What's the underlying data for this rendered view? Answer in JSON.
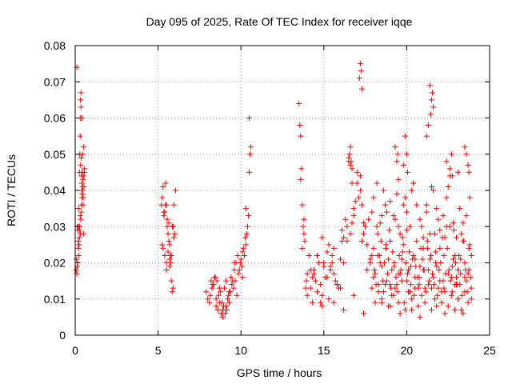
{
  "chart_data": {
    "type": "scatter",
    "title": "Day 095 of 2025, Rate Of TEC Index for receiver iqqe",
    "xlabel": "GPS time / hours",
    "ylabel": "ROTI / TECUs",
    "xlim": [
      0,
      25
    ],
    "ylim": [
      0,
      0.08
    ],
    "x_ticks": [
      "0",
      "5",
      "10",
      "15",
      "20",
      "25"
    ],
    "y_ticks": [
      "0",
      "0.01",
      "0.02",
      "0.03",
      "0.04",
      "0.05",
      "0.06",
      "0.07",
      "0.08"
    ],
    "grid": true,
    "marker": "+",
    "color": "#ff0000",
    "series": [
      {
        "x": [
          0.05,
          0.08,
          0.1,
          0.12,
          0.15,
          0.18,
          0.2,
          0.22,
          0.25,
          0.28,
          0.3,
          0.32,
          0.35,
          0.38,
          0.4,
          0.42,
          0.45,
          0.48,
          0.5,
          0.52,
          0.55,
          0.1,
          0.15,
          0.2,
          0.3,
          0.35,
          0.4,
          0.45,
          0.5,
          0.25,
          0.3,
          0.38,
          0.42,
          0.22,
          0.28,
          0.33,
          0.36,
          0.4,
          0.44,
          0.48,
          0.12,
          0.18,
          0.26,
          0.31,
          0.34,
          0.37,
          0.43,
          0.47,
          0.53,
          0.56,
          5.2,
          5.25,
          5.3,
          5.35,
          5.4,
          5.45,
          5.5,
          5.55,
          5.6,
          5.65,
          5.7,
          5.75,
          5.8,
          5.85,
          5.9,
          5.95,
          6.0,
          5.3,
          5.4,
          5.5,
          5.6,
          5.7,
          5.8,
          5.9,
          5.35,
          5.45,
          5.55,
          5.65,
          5.75,
          5.85,
          5.95,
          5.25,
          5.5,
          5.7,
          5.9,
          6.05,
          7.9,
          8.0,
          8.1,
          8.2,
          8.3,
          8.4,
          8.5,
          8.6,
          8.7,
          8.8,
          8.9,
          9.0,
          9.1,
          9.2,
          9.3,
          9.4,
          9.5,
          9.6,
          9.7,
          9.8,
          9.9,
          10.0,
          10.1,
          10.2,
          10.3,
          10.35,
          10.4,
          10.45,
          10.5,
          10.55,
          10.6,
          8.15,
          8.35,
          8.55,
          8.75,
          8.95,
          9.15,
          9.35,
          9.55,
          9.75,
          9.95,
          10.15,
          8.25,
          8.45,
          8.65,
          8.85,
          9.05,
          9.25,
          9.45,
          9.65,
          9.85,
          10.05,
          10.25,
          8.5,
          8.7,
          8.9,
          9.1,
          9.3,
          9.6,
          10.1,
          10.3,
          10.5,
          13.5,
          13.55,
          13.6,
          13.65,
          13.7,
          13.75,
          13.8,
          13.85,
          13.9,
          13.95,
          14.0,
          14.1,
          14.2,
          14.3,
          14.4,
          14.5,
          14.6,
          14.7,
          14.8,
          14.9,
          15.0,
          15.1,
          15.2,
          15.3,
          15.4,
          15.5,
          15.6,
          15.7,
          15.8,
          15.9,
          16.0,
          16.1,
          16.2,
          16.3,
          16.4,
          16.5,
          16.6,
          16.7,
          16.8,
          16.9,
          17.0,
          17.1,
          17.2,
          17.3,
          17.4,
          17.5,
          17.6,
          17.7,
          17.8,
          17.9,
          13.6,
          13.8,
          14.0,
          14.2,
          14.4,
          14.6,
          14.8,
          15.0,
          15.2,
          15.4,
          15.6,
          15.8,
          16.0,
          16.2,
          16.4,
          16.6,
          16.8,
          17.0,
          17.2,
          17.4,
          17.6,
          17.8,
          13.7,
          14.3,
          14.9,
          15.5,
          16.1,
          16.7,
          17.3,
          17.9,
          17.15,
          17.2,
          17.25,
          17.3,
          16.5,
          16.6,
          16.7,
          16.55,
          16.65,
          18.0,
          18.1,
          18.2,
          18.3,
          18.4,
          18.5,
          18.6,
          18.7,
          18.8,
          18.9,
          19.0,
          19.1,
          19.2,
          19.3,
          19.4,
          19.5,
          19.6,
          19.7,
          19.8,
          19.9,
          20.0,
          20.1,
          20.2,
          20.3,
          20.4,
          20.5,
          20.6,
          20.7,
          20.8,
          20.9,
          21.0,
          21.1,
          21.2,
          21.3,
          21.4,
          21.5,
          21.6,
          21.7,
          21.8,
          21.9,
          22.0,
          22.1,
          22.2,
          22.3,
          22.4,
          22.5,
          22.6,
          22.7,
          22.8,
          22.9,
          23.0,
          23.1,
          23.2,
          23.3,
          23.4,
          23.5,
          23.6,
          23.7,
          23.8,
          23.9,
          18.05,
          18.15,
          18.25,
          18.35,
          18.45,
          18.55,
          18.65,
          18.75,
          18.85,
          18.95,
          19.05,
          19.15,
          19.25,
          19.35,
          19.45,
          19.55,
          19.65,
          19.75,
          19.85,
          19.95,
          20.05,
          20.15,
          20.25,
          20.35,
          20.45,
          20.55,
          20.65,
          20.75,
          20.85,
          20.95,
          21.05,
          21.15,
          21.25,
          21.35,
          21.45,
          21.55,
          21.65,
          21.75,
          21.85,
          21.95,
          22.05,
          22.15,
          22.25,
          22.35,
          22.45,
          22.55,
          22.65,
          22.75,
          22.85,
          22.95,
          23.05,
          23.15,
          23.25,
          23.35,
          23.45,
          23.55,
          23.65,
          23.75,
          23.85,
          18.0,
          18.2,
          18.4,
          18.6,
          18.8,
          19.0,
          19.2,
          19.4,
          19.6,
          19.8,
          20.0,
          20.2,
          20.4,
          20.6,
          20.8,
          21.0,
          21.2,
          21.4,
          21.6,
          21.8,
          22.0,
          22.2,
          22.4,
          22.6,
          22.8,
          23.0,
          23.2,
          23.4,
          23.6,
          23.8,
          18.1,
          18.3,
          18.5,
          18.7,
          18.9,
          19.1,
          19.3,
          19.5,
          19.7,
          19.9,
          20.1,
          20.3,
          20.5,
          20.7,
          20.9,
          21.1,
          21.3,
          21.5,
          21.7,
          21.9,
          22.1,
          22.3,
          22.5,
          22.7,
          22.9,
          23.1,
          23.3,
          23.5,
          23.7,
          23.9,
          18.0,
          18.25,
          18.5,
          18.75,
          19.0,
          19.25,
          19.5,
          19.75,
          20.0,
          20.25,
          20.5,
          20.75,
          21.0,
          21.25,
          21.5,
          21.75,
          22.0,
          22.25,
          22.5,
          22.75,
          23.0,
          23.25,
          23.5,
          23.75,
          19.3,
          19.4,
          19.45,
          19.9,
          20.0,
          20.05,
          21.4,
          21.5,
          21.55,
          21.45,
          21.6,
          22.6,
          22.7,
          22.75,
          23.5,
          23.6,
          23.7,
          23.75,
          19.5,
          19.8,
          21.3,
          21.2,
          22.4,
          23.1,
          14.9,
          15.3,
          15.6,
          16.2,
          16.8,
          17.4,
          17.9,
          18.5,
          19.0,
          19.6,
          20.3,
          20.8,
          21.8,
          22.3,
          22.9,
          23.4,
          23.9
        ],
        "y": [
          0.018,
          0.021,
          0.074,
          0.03,
          0.029,
          0.024,
          0.035,
          0.03,
          0.045,
          0.05,
          0.06,
          0.065,
          0.067,
          0.044,
          0.04,
          0.045,
          0.041,
          0.038,
          0.028,
          0.044,
          0.045,
          0.017,
          0.02,
          0.022,
          0.055,
          0.063,
          0.06,
          0.05,
          0.052,
          0.027,
          0.033,
          0.036,
          0.038,
          0.025,
          0.03,
          0.047,
          0.049,
          0.042,
          0.04,
          0.036,
          0.019,
          0.026,
          0.029,
          0.028,
          0.032,
          0.034,
          0.039,
          0.043,
          0.041,
          0.046,
          0.036,
          0.038,
          0.041,
          0.033,
          0.034,
          0.042,
          0.036,
          0.03,
          0.028,
          0.031,
          0.025,
          0.022,
          0.022,
          0.03,
          0.03,
          0.036,
          0.028,
          0.024,
          0.022,
          0.018,
          0.023,
          0.021,
          0.015,
          0.013,
          0.034,
          0.036,
          0.032,
          0.026,
          0.02,
          0.012,
          0.027,
          0.025,
          0.02,
          0.019,
          0.03,
          0.04,
          0.012,
          0.01,
          0.009,
          0.015,
          0.014,
          0.016,
          0.008,
          0.007,
          0.009,
          0.006,
          0.005,
          0.013,
          0.015,
          0.01,
          0.009,
          0.016,
          0.015,
          0.018,
          0.02,
          0.022,
          0.018,
          0.021,
          0.023,
          0.022,
          0.025,
          0.028,
          0.03,
          0.033,
          0.06,
          0.05,
          0.052,
          0.011,
          0.014,
          0.015,
          0.012,
          0.008,
          0.007,
          0.012,
          0.013,
          0.011,
          0.02,
          0.024,
          0.013,
          0.016,
          0.011,
          0.009,
          0.006,
          0.011,
          0.014,
          0.015,
          0.017,
          0.019,
          0.027,
          0.01,
          0.013,
          0.007,
          0.008,
          0.012,
          0.02,
          0.016,
          0.035,
          0.045,
          0.064,
          0.058,
          0.055,
          0.046,
          0.036,
          0.03,
          0.028,
          0.026,
          0.013,
          0.015,
          0.017,
          0.022,
          0.013,
          0.016,
          0.018,
          0.015,
          0.022,
          0.02,
          0.014,
          0.011,
          0.019,
          0.016,
          0.023,
          0.025,
          0.019,
          0.022,
          0.017,
          0.015,
          0.014,
          0.013,
          0.021,
          0.029,
          0.027,
          0.032,
          0.03,
          0.048,
          0.052,
          0.031,
          0.035,
          0.037,
          0.042,
          0.038,
          0.044,
          0.036,
          0.028,
          0.03,
          0.025,
          0.032,
          0.02,
          0.022,
          0.043,
          0.032,
          0.011,
          0.018,
          0.017,
          0.012,
          0.009,
          0.02,
          0.016,
          0.018,
          0.024,
          0.014,
          0.013,
          0.02,
          0.026,
          0.028,
          0.033,
          0.045,
          0.04,
          0.031,
          0.018,
          0.021,
          0.024,
          0.009,
          0.027,
          0.02,
          0.026,
          0.042,
          0.026,
          0.034,
          0.071,
          0.075,
          0.073,
          0.068,
          0.049,
          0.047,
          0.046,
          0.05,
          0.048,
          0.024,
          0.017,
          0.03,
          0.014,
          0.02,
          0.033,
          0.012,
          0.036,
          0.015,
          0.021,
          0.026,
          0.018,
          0.011,
          0.032,
          0.014,
          0.03,
          0.017,
          0.021,
          0.025,
          0.038,
          0.029,
          0.018,
          0.012,
          0.04,
          0.022,
          0.016,
          0.036,
          0.013,
          0.019,
          0.03,
          0.024,
          0.013,
          0.034,
          0.018,
          0.021,
          0.041,
          0.016,
          0.028,
          0.019,
          0.032,
          0.024,
          0.012,
          0.015,
          0.027,
          0.03,
          0.041,
          0.044,
          0.016,
          0.021,
          0.022,
          0.016,
          0.018,
          0.014,
          0.028,
          0.031,
          0.02,
          0.015,
          0.017,
          0.025,
          0.022,
          0.018,
          0.014,
          0.028,
          0.022,
          0.026,
          0.015,
          0.02,
          0.024,
          0.017,
          0.029,
          0.013,
          0.023,
          0.019,
          0.016,
          0.012,
          0.022,
          0.018,
          0.027,
          0.009,
          0.02,
          0.017,
          0.023,
          0.014,
          0.021,
          0.011,
          0.019,
          0.016,
          0.014,
          0.024,
          0.021,
          0.018,
          0.012,
          0.026,
          0.015,
          0.022,
          0.017,
          0.014,
          0.023,
          0.011,
          0.018,
          0.02,
          0.027,
          0.013,
          0.017,
          0.024,
          0.018,
          0.015,
          0.012,
          0.029,
          0.02,
          0.014,
          0.022,
          0.017,
          0.011,
          0.026,
          0.018,
          0.012,
          0.024,
          0.016,
          0.038,
          0.042,
          0.031,
          0.04,
          0.034,
          0.037,
          0.033,
          0.039,
          0.028,
          0.036,
          0.034,
          0.03,
          0.042,
          0.026,
          0.032,
          0.027,
          0.036,
          0.028,
          0.04,
          0.035,
          0.029,
          0.033,
          0.038,
          0.03,
          0.031,
          0.027,
          0.035,
          0.026,
          0.033,
          0.038,
          0.009,
          0.012,
          0.01,
          0.014,
          0.008,
          0.011,
          0.013,
          0.009,
          0.015,
          0.007,
          0.012,
          0.01,
          0.013,
          0.008,
          0.011,
          0.009,
          0.014,
          0.007,
          0.01,
          0.013,
          0.009,
          0.012,
          0.008,
          0.011,
          0.014,
          0.01,
          0.007,
          0.012,
          0.009,
          0.013,
          0.016,
          0.022,
          0.019,
          0.025,
          0.014,
          0.02,
          0.017,
          0.023,
          0.015,
          0.019,
          0.021,
          0.016,
          0.018,
          0.024,
          0.013,
          0.02,
          0.015,
          0.022,
          0.017,
          0.019,
          0.014,
          0.021,
          0.016,
          0.018,
          0.052,
          0.048,
          0.05,
          0.055,
          0.05,
          0.045,
          0.069,
          0.065,
          0.067,
          0.061,
          0.063,
          0.046,
          0.05,
          0.044,
          0.052,
          0.05,
          0.047,
          0.045,
          0.043,
          0.047,
          0.058,
          0.055,
          0.048,
          0.045,
          0.008,
          0.01,
          0.009,
          0.007,
          0.011,
          0.006,
          0.013,
          0.009,
          0.008,
          0.006,
          0.007,
          0.005,
          0.008,
          0.006,
          0.007,
          0.006,
          0.01
        ]
      }
    ]
  }
}
